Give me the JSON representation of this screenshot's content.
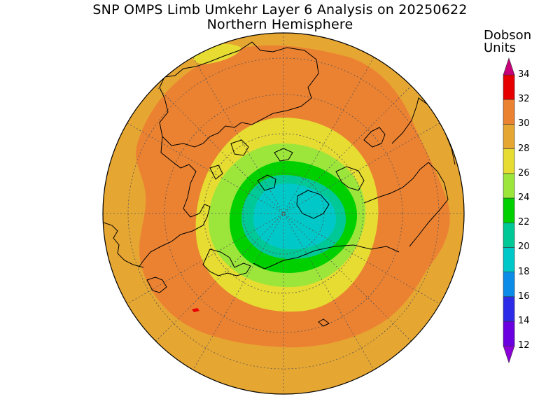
{
  "title": "SNP OMPS Limb Umkehr Layer 6 Analysis on 20250622",
  "subtitle": "Northern Hemisphere",
  "colorbar": {
    "title_line1": "Dobson",
    "title_line2": "Units",
    "labels": [
      "34",
      "32",
      "30",
      "28",
      "26",
      "24",
      "22",
      "20",
      "18",
      "16",
      "14",
      "12"
    ],
    "bins": [
      {
        "range": "<12",
        "color": "#8b00d8"
      },
      {
        "range": "12-14",
        "color": "#6a00e0"
      },
      {
        "range": "14-16",
        "color": "#2c2ce8"
      },
      {
        "range": "16-18",
        "color": "#0a8ce8"
      },
      {
        "range": "18-20",
        "color": "#00c8c8"
      },
      {
        "range": "20-22",
        "color": "#00c896"
      },
      {
        "range": "22-24",
        "color": "#00d000"
      },
      {
        "range": "24-26",
        "color": "#9ce63c"
      },
      {
        "range": "26-28",
        "color": "#e6dc32"
      },
      {
        "range": "28-30",
        "color": "#e6a632"
      },
      {
        "range": "30-32",
        "color": "#eb8232"
      },
      {
        "range": "32-34",
        "color": "#e60000"
      },
      {
        "range": ">34",
        "color": "#c8007a"
      }
    ]
  },
  "map": {
    "projection": "north polar stereographic",
    "hemisphere": "Northern Hemisphere",
    "field_levels_du": [
      {
        "level": 19,
        "color": "#00c8c8"
      },
      {
        "level": 21,
        "color": "#00c896"
      },
      {
        "level": 23,
        "color": "#00d000"
      },
      {
        "level": 25,
        "color": "#9ce63c"
      },
      {
        "level": 27,
        "color": "#e6dc32"
      },
      {
        "level": 29,
        "color": "#e6a632"
      },
      {
        "level": 31,
        "color": "#eb8232"
      },
      {
        "level": 33,
        "color": "#e60000"
      }
    ]
  }
}
